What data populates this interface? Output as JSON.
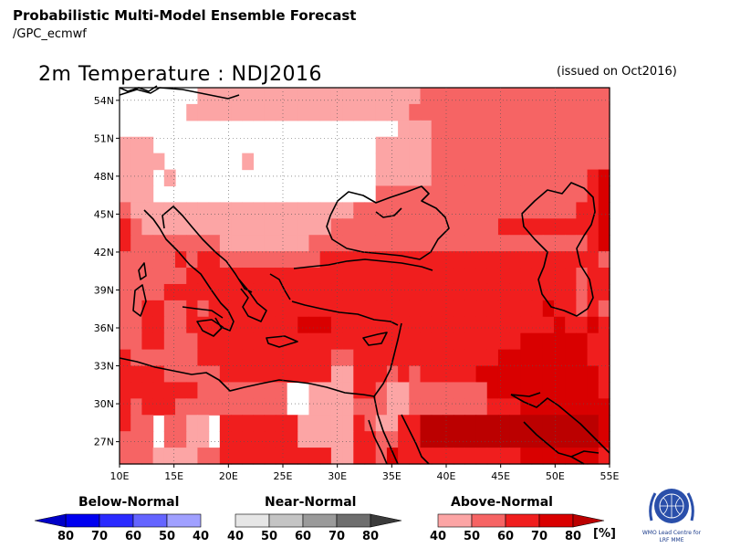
{
  "header": {
    "main_title": "Probabilistic Multi-Model Ensemble Forecast",
    "sub_title": "/GPC_ecmwf",
    "map_title": "2m Temperature : NDJ2016",
    "issued": "(issued on Oct2016)"
  },
  "map": {
    "region": "Mediterranean / Middle East",
    "lon_range": [
      10,
      55
    ],
    "lat_range": [
      25,
      55
    ],
    "lon_ticks": [
      "10E",
      "15E",
      "20E",
      "25E",
      "30E",
      "35E",
      "40E",
      "45E",
      "50E",
      "55E"
    ],
    "lat_ticks": [
      "54N",
      "51N",
      "48N",
      "45N",
      "42N",
      "39N",
      "36N",
      "33N",
      "30N",
      "27N"
    ],
    "category_colors": {
      "0": "#ffffff",
      "1": "#fca5a5",
      "2": "#f66464",
      "3": "#f01e1e",
      "4": "#d90000",
      "5": "#bb0000"
    },
    "grid_rows": [
      "00000001111111111111111111122222222222222222",
      "00000011111111111111111111222222222222222222",
      "00000000000000000000000001112222222222222222",
      "11100000000000000000000111112222222222222222",
      "11110000000100000000000111112222222222222222",
      "11101000000000000000000111112222222222222234",
      "11100000000000000000000222222222222222222234",
      "21111111111111111111122222222222222222222334",
      "32111111111111111112222222222222223333333334",
      "32222222211111111222222222222222222222222234",
      "22222323322222222233333333333333333333333332",
      "22222233333333333333333333333333333333333233",
      "22223333333333333333333333333333333333333233",
      "22332232333333333333333333333333333333433232",
      "22332233333333334443333333333333333333343343",
      "22332223333333333333333333333333333344444433",
      "32222223333333333332233333333333334444444433",
      "33332222233333333331133323233333444444444443",
      "33333332222222200111133211222222244444444443",
      "32333222222222200111122211222222233344444444",
      "32202211033333331111132113355555555555555554",
      "22202211033333331111133223355555555555555554",
      "22211112233333333331133243333333333344444443"
    ]
  },
  "legend": {
    "below": {
      "title": "Below-Normal",
      "labels": [
        "80",
        "70",
        "60",
        "50",
        "40"
      ],
      "colors": [
        "#0000c8",
        "#0000f0",
        "#2a2aff",
        "#6464ff",
        "#a0a0ff"
      ]
    },
    "near": {
      "title": "Near-Normal",
      "labels": [
        "40",
        "50",
        "60",
        "70",
        "80"
      ],
      "colors": [
        "#e6e6e6",
        "#c4c4c4",
        "#9a9a9a",
        "#6e6e6e",
        "#3a3a3a"
      ]
    },
    "above": {
      "title": "Above-Normal",
      "labels": [
        "40",
        "50",
        "60",
        "70",
        "80"
      ],
      "unit": "[%]",
      "colors": [
        "#fca5a5",
        "#f66464",
        "#f01e1e",
        "#d90000",
        "#bb0000"
      ]
    }
  },
  "logo": {
    "name": "wmo-logo",
    "line1": "WMO Lead Centre for",
    "line2": "LRF MME"
  }
}
